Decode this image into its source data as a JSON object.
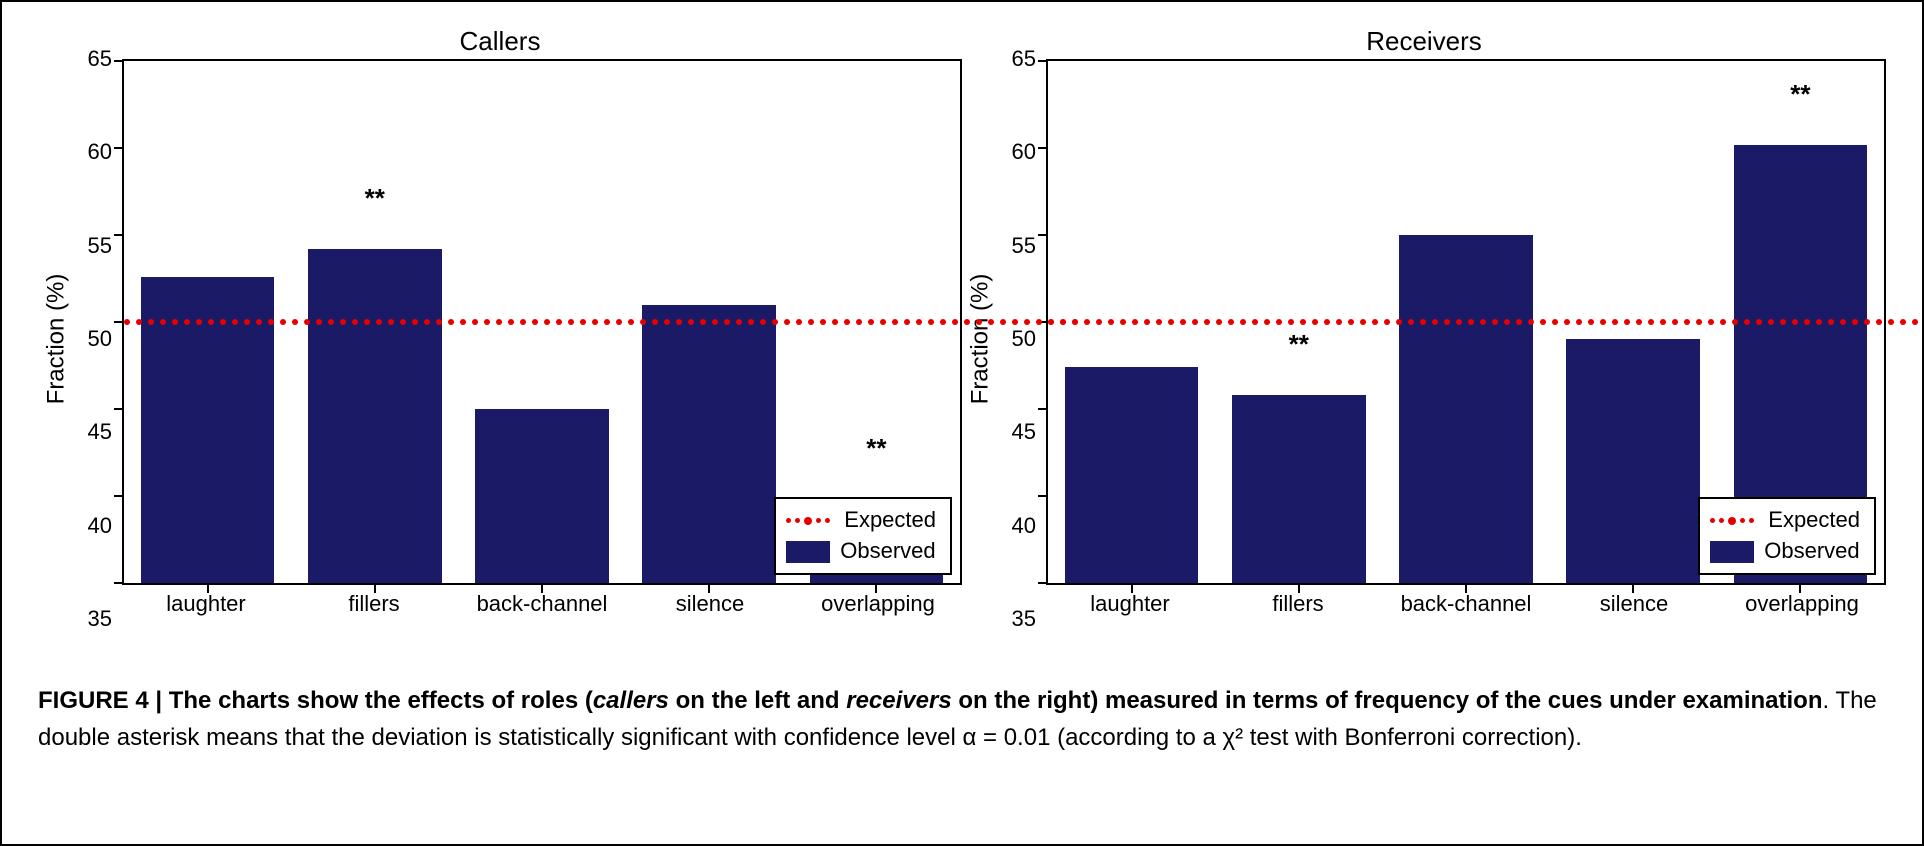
{
  "figure": {
    "border_color": "#000000",
    "background_color": "#ffffff",
    "caption_prefix": "FIGURE 4 | ",
    "caption_bold_1": "The charts show the effects of roles (",
    "caption_bi_1": "callers",
    "caption_bold_2": " on the left and ",
    "caption_bi_2": "receivers",
    "caption_bold_3": " on the right) measured in terms of frequency of the cues under examination",
    "caption_rest": ". The double asterisk means that the deviation is statistically significant with confidence level α = 0.01 (according to a χ² test with Bonferroni correction)."
  },
  "shared": {
    "type": "bar",
    "ylabel": "Fraction (%)",
    "ylim": [
      35,
      65
    ],
    "yticks": [
      35,
      40,
      45,
      50,
      55,
      60,
      65
    ],
    "categories": [
      "laughter",
      "fillers",
      "back-channel",
      "silence",
      "overlapping"
    ],
    "bar_width": 0.8,
    "bar_color": "#1a1a66",
    "expected_value": 50,
    "expected_color": "#e60000",
    "expected_style": "dotted",
    "grid": false,
    "axes_color": "#000000",
    "tick_fontsize": 22,
    "label_fontsize": 24,
    "title_fontsize": 26,
    "sig_marker": "**",
    "legend": {
      "position": "bottom-right",
      "entries": [
        {
          "label": "Expected",
          "type": "line",
          "color": "#e60000"
        },
        {
          "label": "Observed",
          "type": "box",
          "color": "#1a1a66"
        }
      ]
    }
  },
  "charts": [
    {
      "title": "Callers",
      "values": [
        52.6,
        54.2,
        45.0,
        51.0,
        39.8
      ],
      "significant": [
        false,
        true,
        false,
        false,
        true
      ]
    },
    {
      "title": "Receivers",
      "values": [
        47.4,
        45.8,
        55.0,
        49.0,
        60.2
      ],
      "significant": [
        false,
        true,
        false,
        false,
        true
      ]
    }
  ]
}
